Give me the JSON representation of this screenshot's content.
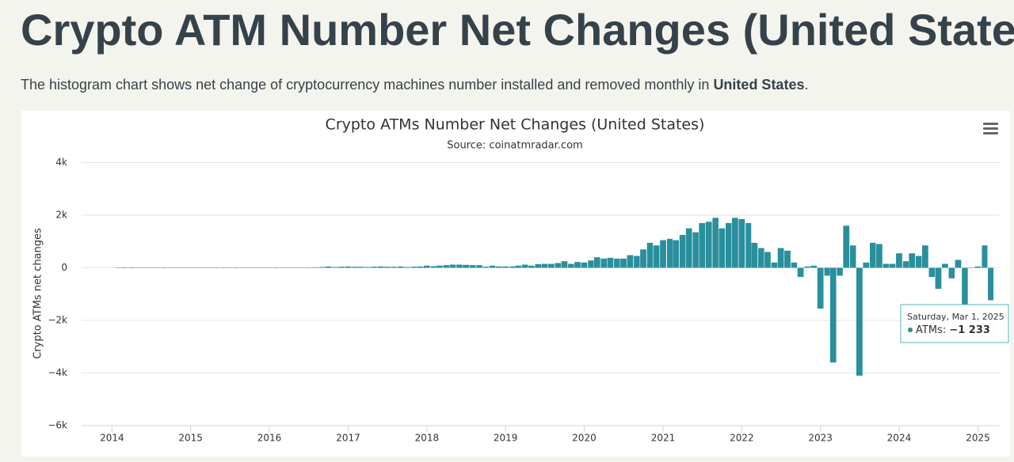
{
  "header": {
    "title": "Crypto ATM Number Net Changes (United States)",
    "title_end": ".",
    "description": [
      "The histogram chart shows net change of cryptocurrency machines number installed and removed monthly in ",
      "United States",
      "."
    ]
  },
  "chart_data": {
    "type": "bar",
    "title": "Crypto ATMs Number Net Changes (United States)",
    "subtitle": "Source: coinatmradar.com",
    "y_label": "Crypto ATMs net changes",
    "grid": true,
    "x": [
      "2014-02-01",
      "2014-03-01",
      "2014-04-01",
      "2014-05-01",
      "2014-06-01",
      "2014-07-01",
      "2014-08-01",
      "2014-09-01",
      "2014-10-01",
      "2014-11-01",
      "2014-12-01",
      "2015-01-01",
      "2015-02-01",
      "2015-03-01",
      "2015-04-01",
      "2015-05-01",
      "2015-06-01",
      "2015-07-01",
      "2015-08-01",
      "2015-09-01",
      "2015-10-01",
      "2015-11-01",
      "2015-12-01",
      "2016-01-01",
      "2016-02-01",
      "2016-03-01",
      "2016-04-01",
      "2016-05-01",
      "2016-06-01",
      "2016-07-01",
      "2016-08-01",
      "2016-09-01",
      "2016-10-01",
      "2016-11-01",
      "2016-12-01",
      "2017-01-01",
      "2017-02-01",
      "2017-03-01",
      "2017-04-01",
      "2017-05-01",
      "2017-06-01",
      "2017-07-01",
      "2017-08-01",
      "2017-09-01",
      "2017-10-01",
      "2017-11-01",
      "2017-12-01",
      "2018-01-01",
      "2018-02-01",
      "2018-03-01",
      "2018-04-01",
      "2018-05-01",
      "2018-06-01",
      "2018-07-01",
      "2018-08-01",
      "2018-09-01",
      "2018-10-01",
      "2018-11-01",
      "2018-12-01",
      "2019-01-01",
      "2019-02-01",
      "2019-03-01",
      "2019-04-01",
      "2019-05-01",
      "2019-06-01",
      "2019-07-01",
      "2019-08-01",
      "2019-09-01",
      "2019-10-01",
      "2019-11-01",
      "2019-12-01",
      "2020-01-01",
      "2020-02-01",
      "2020-03-01",
      "2020-04-01",
      "2020-05-01",
      "2020-06-01",
      "2020-07-01",
      "2020-08-01",
      "2020-09-01",
      "2020-10-01",
      "2020-11-01",
      "2020-12-01",
      "2021-01-01",
      "2021-02-01",
      "2021-03-01",
      "2021-04-01",
      "2021-05-01",
      "2021-06-01",
      "2021-07-01",
      "2021-08-01",
      "2021-09-01",
      "2021-10-01",
      "2021-11-01",
      "2021-12-01",
      "2022-01-01",
      "2022-02-01",
      "2022-03-01",
      "2022-04-01",
      "2022-05-01",
      "2022-06-01",
      "2022-07-01",
      "2022-08-01",
      "2022-09-01",
      "2022-10-01",
      "2022-11-01",
      "2022-12-01",
      "2023-01-01",
      "2023-02-01",
      "2023-03-01",
      "2023-04-01",
      "2023-05-01",
      "2023-06-01",
      "2023-07-01",
      "2023-08-01",
      "2023-09-01",
      "2023-10-01",
      "2023-11-01",
      "2023-12-01",
      "2024-01-01",
      "2024-02-01",
      "2024-03-01",
      "2024-04-01",
      "2024-05-01",
      "2024-06-01",
      "2024-07-01",
      "2024-08-01",
      "2024-09-01",
      "2024-10-01",
      "2024-11-01",
      "2024-12-01",
      "2025-01-01",
      "2025-02-01",
      "2025-03-01"
    ],
    "series": [
      {
        "name": "ATMs",
        "color": "#2a8f9c",
        "values": [
          15,
          20,
          20,
          0,
          0,
          10,
          10,
          10,
          10,
          10,
          10,
          10,
          10,
          10,
          10,
          10,
          10,
          10,
          10,
          10,
          15,
          0,
          10,
          10,
          10,
          10,
          10,
          15,
          15,
          15,
          20,
          30,
          50,
          30,
          40,
          50,
          40,
          40,
          30,
          40,
          50,
          40,
          40,
          50,
          30,
          40,
          50,
          80,
          60,
          80,
          100,
          120,
          120,
          110,
          100,
          100,
          40,
          80,
          50,
          50,
          50,
          80,
          120,
          80,
          140,
          150,
          150,
          180,
          250,
          150,
          220,
          200,
          280,
          400,
          350,
          380,
          350,
          350,
          480,
          450,
          700,
          950,
          850,
          1050,
          1100,
          1050,
          1250,
          1500,
          1350,
          1700,
          1750,
          1900,
          1500,
          1700,
          1900,
          1850,
          1700,
          950,
          750,
          600,
          200,
          750,
          650,
          200,
          -350,
          50,
          80,
          -1550,
          -300,
          -3600,
          -300,
          1600,
          850,
          -4100,
          200,
          950,
          900,
          150,
          150,
          550,
          250,
          550,
          450,
          850,
          -350,
          -800,
          150,
          -400,
          300,
          -1450,
          0,
          50,
          850,
          -1233
        ]
      }
    ],
    "xlim": [
      "2013-08-13",
      "2025-04-12"
    ],
    "xticks": [
      {
        "value": "2014-01-01",
        "label": "2014"
      },
      {
        "value": "2015-01-01",
        "label": "2015"
      },
      {
        "value": "2016-01-01",
        "label": "2016"
      },
      {
        "value": "2017-01-01",
        "label": "2017"
      },
      {
        "value": "2018-01-01",
        "label": "2018"
      },
      {
        "value": "2019-01-01",
        "label": "2019"
      },
      {
        "value": "2020-01-01",
        "label": "2020"
      },
      {
        "value": "2021-01-01",
        "label": "2021"
      },
      {
        "value": "2022-01-01",
        "label": "2022"
      },
      {
        "value": "2023-01-01",
        "label": "2023"
      },
      {
        "value": "2024-01-01",
        "label": "2024"
      },
      {
        "value": "2025-01-01",
        "label": "2025"
      }
    ],
    "ylim": [
      -6000,
      4000
    ],
    "yticks": [
      {
        "value": -6000,
        "label": "−6k"
      },
      {
        "value": -4000,
        "label": "−4k"
      },
      {
        "value": -2000,
        "label": "−2k"
      },
      0,
      {
        "value": 2000,
        "label": "2k"
      },
      {
        "value": 4000,
        "label": "4k"
      }
    ],
    "tooltip": {
      "title": "Saturday, Mar 1, 2025",
      "label": "ATMs:",
      "value": -1233,
      "value_label": "−1 233"
    }
  }
}
